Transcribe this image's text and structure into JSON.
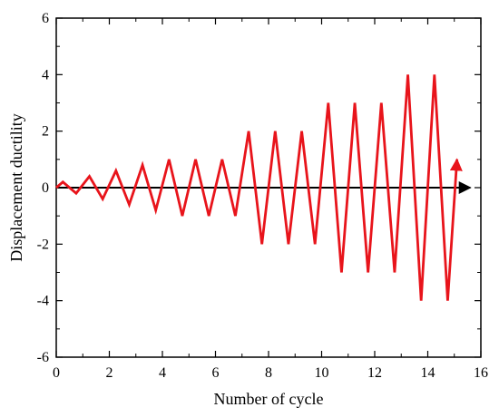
{
  "chart_data": {
    "type": "line",
    "title": "",
    "xlabel": "Number of cycle",
    "ylabel": "Displacement ductility",
    "xlim": [
      0,
      16
    ],
    "ylim": [
      -6,
      6
    ],
    "xticks": [
      0,
      2,
      4,
      6,
      8,
      10,
      12,
      14,
      16
    ],
    "yticks": [
      -6,
      -4,
      -2,
      0,
      2,
      4,
      6
    ],
    "grid": false,
    "legend": "none",
    "series": [
      {
        "color": "#e8141b",
        "x": [
          0,
          0.25,
          0.75,
          1.25,
          1.75,
          2.25,
          2.75,
          3.25,
          3.75,
          4.25,
          4.75,
          5.25,
          5.75,
          6.25,
          6.75,
          7.25,
          7.75,
          8.25,
          8.75,
          9.25,
          9.75,
          10.25,
          10.75,
          11.25,
          11.75,
          12.25,
          12.75,
          13.25,
          13.75,
          14.25,
          14.75,
          15.1
        ],
        "y": [
          0,
          0.2,
          -0.2,
          0.4,
          -0.4,
          0.6,
          -0.6,
          0.8,
          -0.8,
          1,
          -1,
          1,
          -1,
          1,
          -1,
          2,
          -2,
          2,
          -2,
          2,
          -2,
          3,
          -3,
          3,
          -3,
          3,
          -3,
          4,
          -4,
          4,
          -4,
          1
        ]
      }
    ],
    "reference_line": {
      "y": 0,
      "x_start": 0,
      "x_end": 15.6,
      "color": "#000000",
      "arrow": true
    }
  }
}
